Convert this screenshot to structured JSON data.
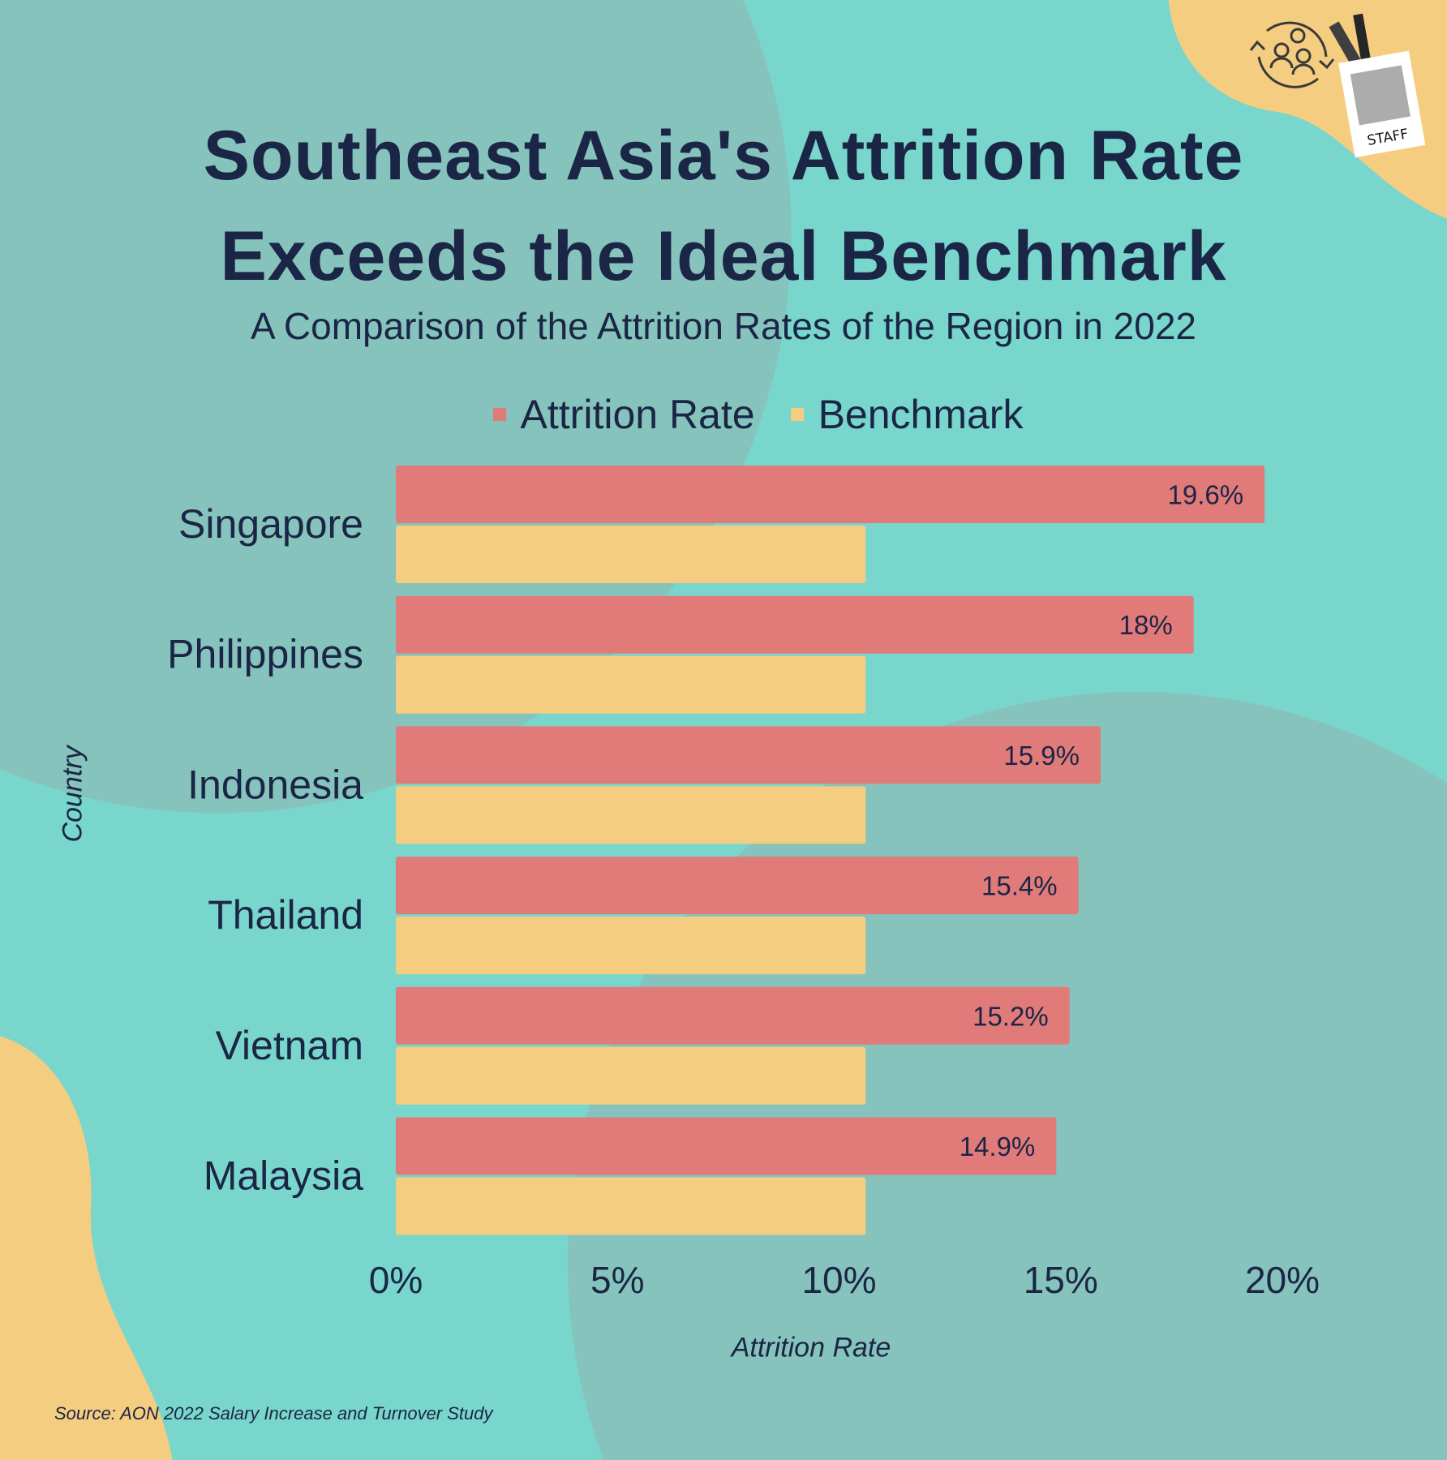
{
  "title_lines": [
    "Southeast Asia's Attrition Rate",
    "Exceeds the Ideal Benchmark"
  ],
  "subtitle": "A Comparison of the Attrition Rates of the Region in 2022",
  "source": "Source: AON 2022 Salary Increase and Turnover Study",
  "badge_text": "STAFF",
  "icons": [
    "people-rotation-icon",
    "staff-badge-icon"
  ],
  "colors": {
    "attrition": "#e07b7a",
    "benchmark": "#f4cd80",
    "text": "#1b2545",
    "background": "#78d6cc",
    "blob": "#86c3bd"
  },
  "chart_data": {
    "type": "bar",
    "orientation": "horizontal",
    "title": "Southeast Asia's Attrition Rate Exceeds the Ideal Benchmark",
    "subtitle": "A Comparison of the Attrition Rates of the Region in 2022",
    "xlabel": "Attrition Rate",
    "ylabel": "Country",
    "categories": [
      "Singapore",
      "Philippines",
      "Indonesia",
      "Thailand",
      "Vietnam",
      "Malaysia"
    ],
    "series": [
      {
        "name": "Attrition Rate",
        "values": [
          19.6,
          18,
          15.9,
          15.4,
          15.2,
          14.9
        ],
        "labels": [
          "19.6%",
          "18%",
          "15.9%",
          "15.4%",
          "15.2%",
          "14.9%"
        ]
      },
      {
        "name": "Benchmark",
        "values": [
          10.6,
          10.6,
          10.6,
          10.6,
          10.6,
          10.6
        ]
      }
    ],
    "xlim": [
      0,
      20
    ],
    "xticks": [
      "0%",
      "5%",
      "10%",
      "15%",
      "20%"
    ],
    "grid": false,
    "legend_position": "top"
  }
}
